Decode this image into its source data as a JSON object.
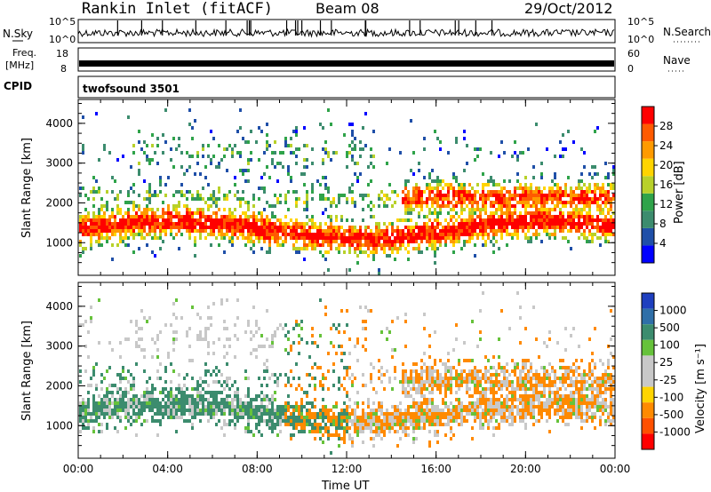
{
  "header": {
    "station": "Rankin Inlet (fitACF)",
    "beam": "Beam 08",
    "date": "29/Oct/2012"
  },
  "top_panels": {
    "nsky_label": "N.Sky",
    "nsky_ticks": [
      "10^5",
      "10^0"
    ],
    "nsearch_label": "N.Search",
    "nsearch_ticks": [
      "10^5",
      "10^0"
    ],
    "freq_label_line1": "Freq.",
    "freq_label_line2": "[MHz]",
    "freq_ticks": [
      "18",
      "8"
    ],
    "nave_label": "Nave",
    "nave_ticks": [
      "60",
      "0"
    ],
    "cpid_label": "CPID",
    "cpid_value": "twofsound 3501"
  },
  "colors": {
    "power_scale": [
      "#0000ff",
      "#1f4fa8",
      "#3c8c6e",
      "#2fa34a",
      "#b8d12a",
      "#ffd400",
      "#ff9a00",
      "#ff5a00",
      "#ff0000"
    ],
    "velocity_scale": [
      "#1e3fbf",
      "#2f6fa8",
      "#3c8c6e",
      "#66c23a",
      "#c8c8c8",
      "#c8c8c8",
      "#ffd400",
      "#ff8a00",
      "#ff5000",
      "#ff0000"
    ]
  },
  "chart_data": [
    {
      "type": "heatmap",
      "name": "power",
      "xlabel": "",
      "ylabel": "Slant Range [km]",
      "xlim": [
        "00:00",
        "00:00"
      ],
      "ylim": [
        180,
        4600
      ],
      "yticks": [
        "1000",
        "2000",
        "3000",
        "4000"
      ],
      "xticks": [
        "00:00",
        "04:00",
        "08:00",
        "12:00",
        "16:00",
        "20:00",
        "00:00"
      ],
      "colorbar": {
        "label": "Power [dB]",
        "ticks": [
          "4",
          "8",
          "12",
          "16",
          "20",
          "24",
          "28"
        ],
        "range": [
          0,
          30
        ]
      }
    },
    {
      "type": "heatmap",
      "name": "velocity",
      "xlabel": "Time UT",
      "ylabel": "Slant Range [km]",
      "xlim": [
        "00:00",
        "00:00"
      ],
      "ylim": [
        180,
        4600
      ],
      "yticks": [
        "1000",
        "2000",
        "3000",
        "4000"
      ],
      "xticks": [
        "00:00",
        "04:00",
        "08:00",
        "12:00",
        "16:00",
        "20:00",
        "00:00"
      ],
      "colorbar": {
        "label": "Velocity [m s⁻¹]",
        "ticks": [
          "1000",
          "500",
          "100",
          "25",
          "-25",
          "-100",
          "-500",
          "-1000"
        ]
      }
    }
  ]
}
